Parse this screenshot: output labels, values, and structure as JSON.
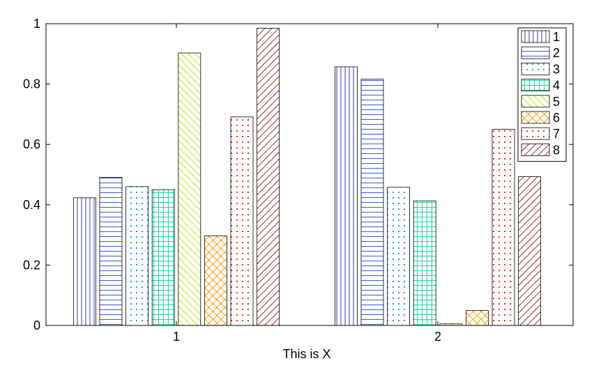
{
  "chart_data": {
    "type": "bar",
    "title": "",
    "xlabel": "This is X",
    "ylabel": "",
    "categories": [
      "1",
      "2"
    ],
    "ylim": [
      0,
      1
    ],
    "yticks": [
      "0",
      "0.2",
      "0.4",
      "0.6",
      "0.8",
      "1"
    ],
    "grid": false,
    "legend_position": "top-right",
    "series": [
      {
        "name": "1",
        "values": [
          0.423,
          0.857
        ],
        "color": "#3a3ab8",
        "pattern": "vertical-lines"
      },
      {
        "name": "2",
        "values": [
          0.491,
          0.816
        ],
        "color": "#3a5ad8",
        "pattern": "horizontal-lines"
      },
      {
        "name": "3",
        "values": [
          0.46,
          0.458
        ],
        "color": "#1a9fd8",
        "pattern": "dots"
      },
      {
        "name": "4",
        "values": [
          0.45,
          0.413
        ],
        "color": "#1ad8a0",
        "pattern": "grid"
      },
      {
        "name": "5",
        "values": [
          0.903,
          0.005
        ],
        "color": "#c8e010",
        "pattern": "diagonal-lines-up"
      },
      {
        "name": "6",
        "values": [
          0.297,
          0.05
        ],
        "color": "#ff9a10",
        "pattern": "crosshatch"
      },
      {
        "name": "7",
        "values": [
          0.691,
          0.65
        ],
        "color": "#ff2a1a",
        "pattern": "dots"
      },
      {
        "name": "8",
        "values": [
          0.985,
          0.493
        ],
        "color": "#a0282a",
        "pattern": "diagonal-lines-down"
      }
    ]
  }
}
